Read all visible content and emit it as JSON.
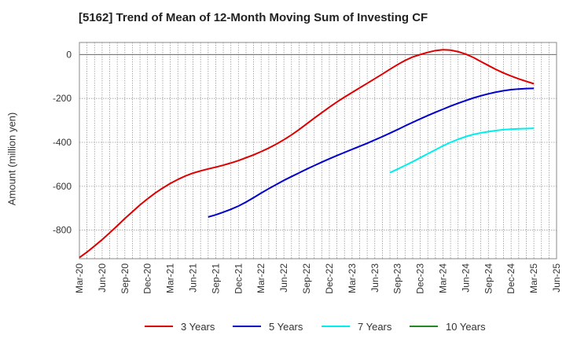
{
  "chart_data": {
    "type": "line",
    "title": "[5162]  Trend of Mean of 12-Month Moving Sum of Investing CF",
    "ylabel": "Amount (million yen)",
    "xlabel": "",
    "ylim": [
      -930,
      55
    ],
    "yticks": [
      0,
      -200,
      -400,
      -600,
      -800
    ],
    "x_ticks": [
      "Mar-20",
      "Jun-20",
      "Sep-20",
      "Dec-20",
      "Mar-21",
      "Jun-21",
      "Sep-21",
      "Dec-21",
      "Mar-22",
      "Jun-22",
      "Sep-22",
      "Dec-22",
      "Mar-23",
      "Jun-23",
      "Sep-23",
      "Dec-23",
      "Mar-24",
      "Jun-24",
      "Sep-24",
      "Dec-24",
      "Mar-25",
      "Jun-25"
    ],
    "grid": true,
    "legend_position": "bottom",
    "series": [
      {
        "name": "3 Years",
        "color": "#dd0000",
        "x": [
          "Mar-20",
          "Apr-20",
          "May-20",
          "Jun-20",
          "Jul-20",
          "Aug-20",
          "Sep-20",
          "Oct-20",
          "Nov-20",
          "Dec-20",
          "Jan-21",
          "Feb-21",
          "Mar-21",
          "Apr-21",
          "May-21",
          "Jun-21",
          "Jul-21",
          "Aug-21",
          "Sep-21",
          "Oct-21",
          "Nov-21",
          "Dec-21",
          "Jan-22",
          "Feb-22",
          "Mar-22",
          "Apr-22",
          "May-22",
          "Jun-22",
          "Jul-22",
          "Aug-22",
          "Sep-22",
          "Oct-22",
          "Nov-22",
          "Dec-22",
          "Jan-23",
          "Feb-23",
          "Mar-23",
          "Apr-23",
          "May-23",
          "Jun-23",
          "Jul-23",
          "Aug-23",
          "Sep-23",
          "Oct-23",
          "Nov-23",
          "Dec-23",
          "Jan-24",
          "Feb-24",
          "Mar-24",
          "Apr-24",
          "May-24",
          "Jun-24",
          "Jul-24",
          "Aug-24",
          "Sep-24",
          "Oct-24",
          "Nov-24",
          "Dec-24",
          "Jan-25",
          "Feb-25",
          "Mar-25"
        ],
        "values": [
          -925,
          -900,
          -872,
          -843,
          -812,
          -780,
          -747,
          -716,
          -685,
          -657,
          -631,
          -608,
          -587,
          -569,
          -553,
          -540,
          -530,
          -521,
          -513,
          -504,
          -494,
          -483,
          -470,
          -457,
          -442,
          -426,
          -408,
          -388,
          -366,
          -342,
          -316,
          -290,
          -265,
          -240,
          -216,
          -194,
          -173,
          -152,
          -131,
          -110,
          -89,
          -67,
          -46,
          -27,
          -11,
          0,
          10,
          18,
          22,
          20,
          13,
          2,
          -13,
          -32,
          -50,
          -68,
          -84,
          -98,
          -111,
          -122,
          -133
        ]
      },
      {
        "name": "5 Years",
        "color": "#0000cc",
        "x": [
          "Aug-21",
          "Sep-21",
          "Oct-21",
          "Nov-21",
          "Dec-21",
          "Jan-22",
          "Feb-22",
          "Mar-22",
          "Apr-22",
          "May-22",
          "Jun-22",
          "Jul-22",
          "Aug-22",
          "Sep-22",
          "Oct-22",
          "Nov-22",
          "Dec-22",
          "Jan-23",
          "Feb-23",
          "Mar-23",
          "Apr-23",
          "May-23",
          "Jun-23",
          "Jul-23",
          "Aug-23",
          "Sep-23",
          "Oct-23",
          "Nov-23",
          "Dec-23",
          "Jan-24",
          "Feb-24",
          "Mar-24",
          "Apr-24",
          "May-24",
          "Jun-24",
          "Jul-24",
          "Aug-24",
          "Sep-24",
          "Oct-24",
          "Nov-24",
          "Dec-24",
          "Jan-25",
          "Feb-25",
          "Mar-25"
        ],
        "values": [
          -740,
          -730,
          -718,
          -705,
          -690,
          -672,
          -652,
          -631,
          -611,
          -592,
          -573,
          -556,
          -539,
          -522,
          -506,
          -490,
          -475,
          -460,
          -446,
          -432,
          -418,
          -404,
          -389,
          -374,
          -358,
          -342,
          -325,
          -309,
          -293,
          -278,
          -263,
          -249,
          -235,
          -222,
          -210,
          -198,
          -188,
          -179,
          -171,
          -165,
          -160,
          -157,
          -155,
          -154
        ]
      },
      {
        "name": "7 Years",
        "color": "#00eeee",
        "x": [
          "Aug-23",
          "Sep-23",
          "Oct-23",
          "Nov-23",
          "Dec-23",
          "Jan-24",
          "Feb-24",
          "Mar-24",
          "Apr-24",
          "May-24",
          "Jun-24",
          "Jul-24",
          "Aug-24",
          "Sep-24",
          "Oct-24",
          "Nov-24",
          "Dec-24",
          "Jan-25",
          "Feb-25",
          "Mar-25"
        ],
        "values": [
          -538,
          -522,
          -505,
          -488,
          -470,
          -452,
          -434,
          -416,
          -400,
          -386,
          -374,
          -364,
          -357,
          -351,
          -346,
          -342,
          -340,
          -338,
          -337,
          -336
        ]
      },
      {
        "name": "10 Years",
        "color": "#228822",
        "x": [],
        "values": []
      }
    ]
  }
}
